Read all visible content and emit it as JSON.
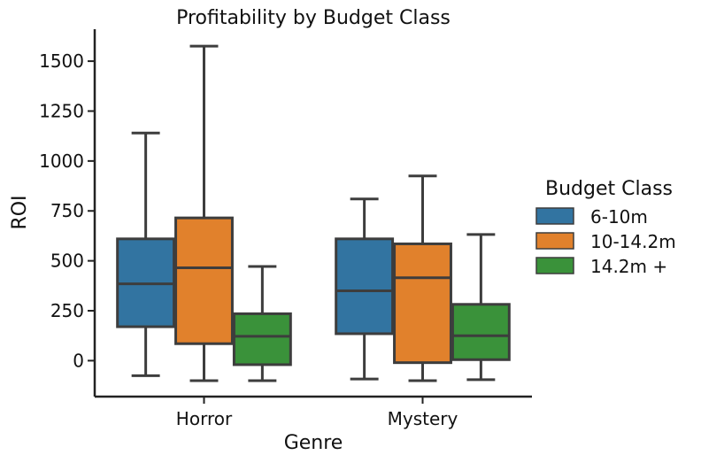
{
  "chart_data": {
    "type": "box",
    "title": "Profitability by Budget Class",
    "xlabel": "Genre",
    "ylabel": "ROI",
    "categories": [
      "Horror",
      "Mystery"
    ],
    "ylim": [
      -180,
      1660
    ],
    "yticks": [
      0,
      250,
      500,
      750,
      1000,
      1250,
      1500
    ],
    "grid": false,
    "legend": {
      "title": "Budget Class",
      "placement": "right"
    },
    "series": [
      {
        "name": "6-10m",
        "color": "#3274a1",
        "boxes": [
          {
            "whisker_low": -75,
            "q1": 170,
            "median": 385,
            "q3": 610,
            "whisker_high": 1140
          },
          {
            "whisker_low": -92,
            "q1": 135,
            "median": 350,
            "q3": 610,
            "whisker_high": 810
          }
        ]
      },
      {
        "name": "10-14.2m",
        "color": "#e1812c",
        "boxes": [
          {
            "whisker_low": -100,
            "q1": 85,
            "median": 465,
            "q3": 715,
            "whisker_high": 1575
          },
          {
            "whisker_low": -100,
            "q1": -10,
            "median": 415,
            "q3": 585,
            "whisker_high": 925
          }
        ]
      },
      {
        "name": "14.2m +",
        "color": "#3a923a",
        "boxes": [
          {
            "whisker_low": -100,
            "q1": -20,
            "median": 122,
            "q3": 235,
            "whisker_high": 472
          },
          {
            "whisker_low": -95,
            "q1": 5,
            "median": 125,
            "q3": 282,
            "whisker_high": 632
          }
        ]
      }
    ]
  }
}
